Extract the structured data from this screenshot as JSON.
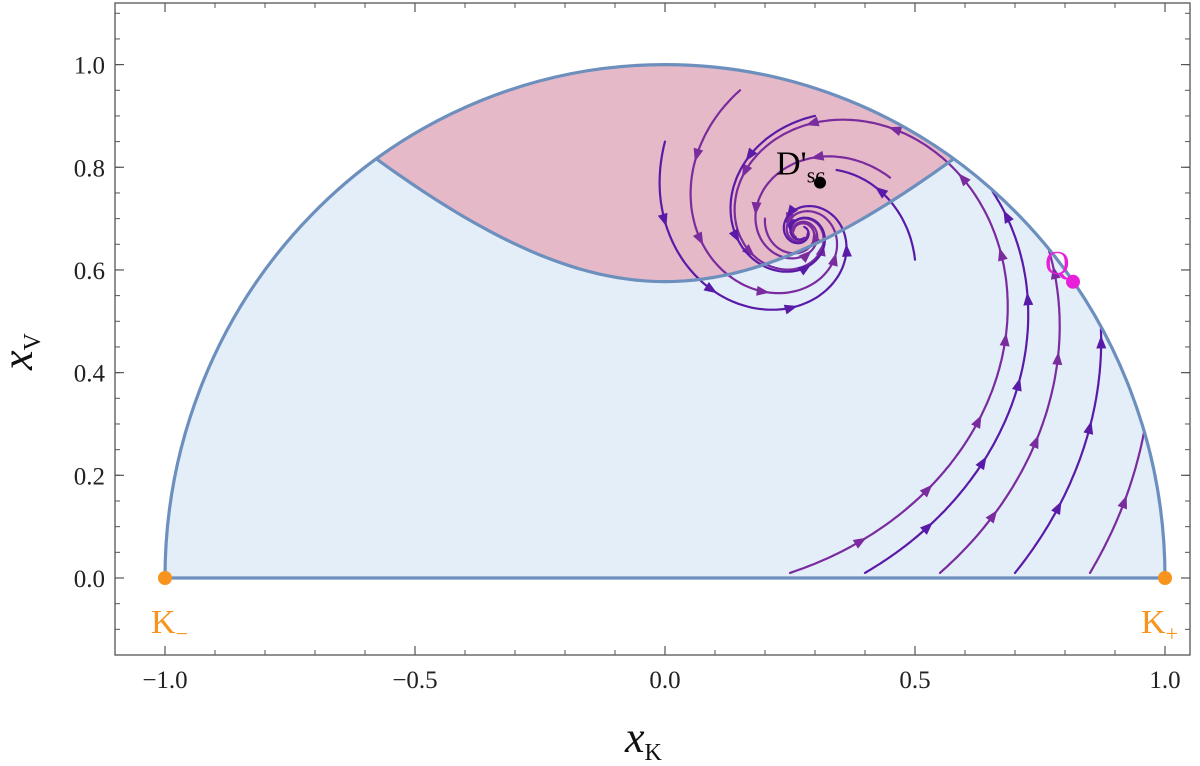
{
  "chart_data": {
    "type": "streamplot",
    "xlabel": {
      "main": "x",
      "sub": "K"
    },
    "ylabel": {
      "main": "x",
      "sub": "V"
    },
    "xlim": [
      -1.1,
      1.05
    ],
    "ylim": [
      -0.15,
      1.12
    ],
    "x_ticks": [
      -1.0,
      -0.5,
      0.0,
      0.5,
      1.0
    ],
    "x_tick_labels": [
      "−1.0",
      "−0.5",
      "0.0",
      "0.5",
      "1.0"
    ],
    "y_ticks": [
      0.0,
      0.2,
      0.4,
      0.6,
      0.8,
      1.0
    ],
    "y_tick_labels": [
      "0.0",
      "0.2",
      "0.4",
      "0.6",
      "0.8",
      "1.0"
    ],
    "grid": false,
    "regions": [
      {
        "name": "unit-half-disk",
        "color": "#e3eef9"
      },
      {
        "name": "shaded-region",
        "color": "#e6b9c8",
        "bounded_by": [
          "y = sqrt(1/3 + x^2)",
          "y = sqrt(1 - x^2)"
        ]
      }
    ],
    "boundary_color": "#6d8fbe",
    "stream_colors": [
      "#5a1aa8",
      "#7a2b9e"
    ],
    "points": [
      {
        "id": "K_minus",
        "label": "K",
        "sub": "−",
        "x": -1.0,
        "y": 0.0,
        "color": "#f7941d",
        "label_pos": "below-right"
      },
      {
        "id": "K_plus",
        "label": "K",
        "sub": "+",
        "x": 1.0,
        "y": 0.0,
        "color": "#f7941d",
        "label_pos": "below-left"
      },
      {
        "id": "Q",
        "label": "Q",
        "sub": "",
        "x": 0.816,
        "y": 0.577,
        "color": "#e81fd8",
        "label_pos": "above"
      },
      {
        "id": "D_sc",
        "label": "D'",
        "sub": "sc",
        "x": 0.31,
        "y": 0.77,
        "color": "#000000",
        "label_pos": "above-left"
      }
    ]
  }
}
